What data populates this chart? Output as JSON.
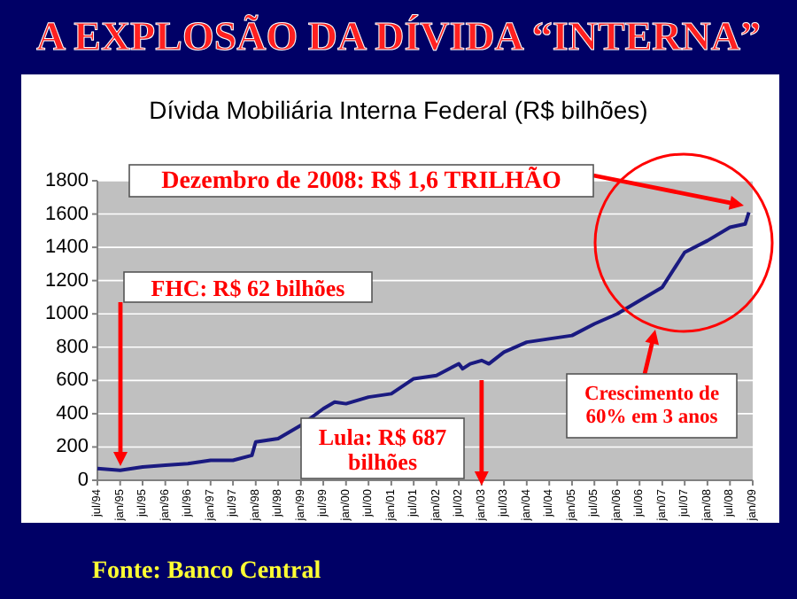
{
  "chart_data": {
    "type": "line",
    "title": "A EXPLOSÃO DA DÍVIDA “INTERNA”",
    "subtitle": "Dívida Mobiliária Interna Federal (R$ bilhões)",
    "x": [
      "1994-07",
      "1995-01",
      "1995-07",
      "1996-01",
      "1996-07",
      "1997-01",
      "1997-07",
      "1997-12",
      "1998-01",
      "1998-07",
      "1998-10",
      "1999-01",
      "1999-07",
      "1999-10",
      "2000-01",
      "2000-07",
      "2001-01",
      "2001-07",
      "2002-01",
      "2002-07",
      "2002-08",
      "2002-10",
      "2003-01",
      "2003-03",
      "2003-07",
      "2004-01",
      "2004-07",
      "2005-01",
      "2005-07",
      "2006-01",
      "2006-07",
      "2007-01",
      "2007-07",
      "2008-01",
      "2008-07",
      "2008-11",
      "2008-12"
    ],
    "series": [
      {
        "color": "#1a1a80",
        "values": [
          70,
          60,
          80,
          90,
          100,
          120,
          120,
          150,
          230,
          250,
          290,
          330,
          430,
          470,
          460,
          500,
          520,
          610,
          630,
          700,
          670,
          700,
          720,
          700,
          770,
          830,
          850,
          870,
          940,
          1000,
          1080,
          1160,
          1370,
          1440,
          1520,
          1540,
          1610
        ]
      }
    ],
    "xlim": [
      "1994-07",
      "2009-01"
    ],
    "xticks": [
      {
        "value": "1994-07",
        "label": "jul/94"
      },
      {
        "value": "1995-01",
        "label": "jan/95"
      },
      {
        "value": "1995-07",
        "label": "jul/95"
      },
      {
        "value": "1996-01",
        "label": "jan/96"
      },
      {
        "value": "1996-07",
        "label": "jul/96"
      },
      {
        "value": "1997-01",
        "label": "jan/97"
      },
      {
        "value": "1997-07",
        "label": "jul/97"
      },
      {
        "value": "1998-01",
        "label": "jan/98"
      },
      {
        "value": "1998-07",
        "label": "jul/98"
      },
      {
        "value": "1999-01",
        "label": "jan/99"
      },
      {
        "value": "1999-07",
        "label": "jul/99"
      },
      {
        "value": "2000-01",
        "label": "jan/00"
      },
      {
        "value": "2000-07",
        "label": "jul/00"
      },
      {
        "value": "2001-01",
        "label": "jan/01"
      },
      {
        "value": "2001-07",
        "label": "jul/01"
      },
      {
        "value": "2002-01",
        "label": "jan/02"
      },
      {
        "value": "2002-07",
        "label": "jul/02"
      },
      {
        "value": "2003-01",
        "label": "jan/03"
      },
      {
        "value": "2003-07",
        "label": "jul/03"
      },
      {
        "value": "2004-01",
        "label": "jan/04"
      },
      {
        "value": "2004-07",
        "label": "jul/04"
      },
      {
        "value": "2005-01",
        "label": "jan/05"
      },
      {
        "value": "2005-07",
        "label": "jul/05"
      },
      {
        "value": "2006-01",
        "label": "jan/06"
      },
      {
        "value": "2006-07",
        "label": "jul/06"
      },
      {
        "value": "2007-01",
        "label": "jan/07"
      },
      {
        "value": "2007-07",
        "label": "jul/07"
      },
      {
        "value": "2008-01",
        "label": "jan/08"
      },
      {
        "value": "2008-07",
        "label": "jul/08"
      },
      {
        "value": "2009-01",
        "label": "jan/09"
      }
    ],
    "ylim": [
      0,
      1800
    ],
    "yticks": [
      0,
      200,
      400,
      600,
      800,
      1000,
      1200,
      1400,
      1600,
      1800
    ],
    "grid": "y",
    "marker": "none",
    "line_style": "solid",
    "annotations": [
      "Dezembro de 2008: R$ 1,6 TRILHÃO",
      "FHC: R$ 62 bilhões",
      {
        "text": "Lula: R$ 687 bilhões",
        "x": "2003-01",
        "y": 687
      },
      "Crescimento de 60% em 3 anos",
      "Fonte: Banco Central"
    ]
  }
}
